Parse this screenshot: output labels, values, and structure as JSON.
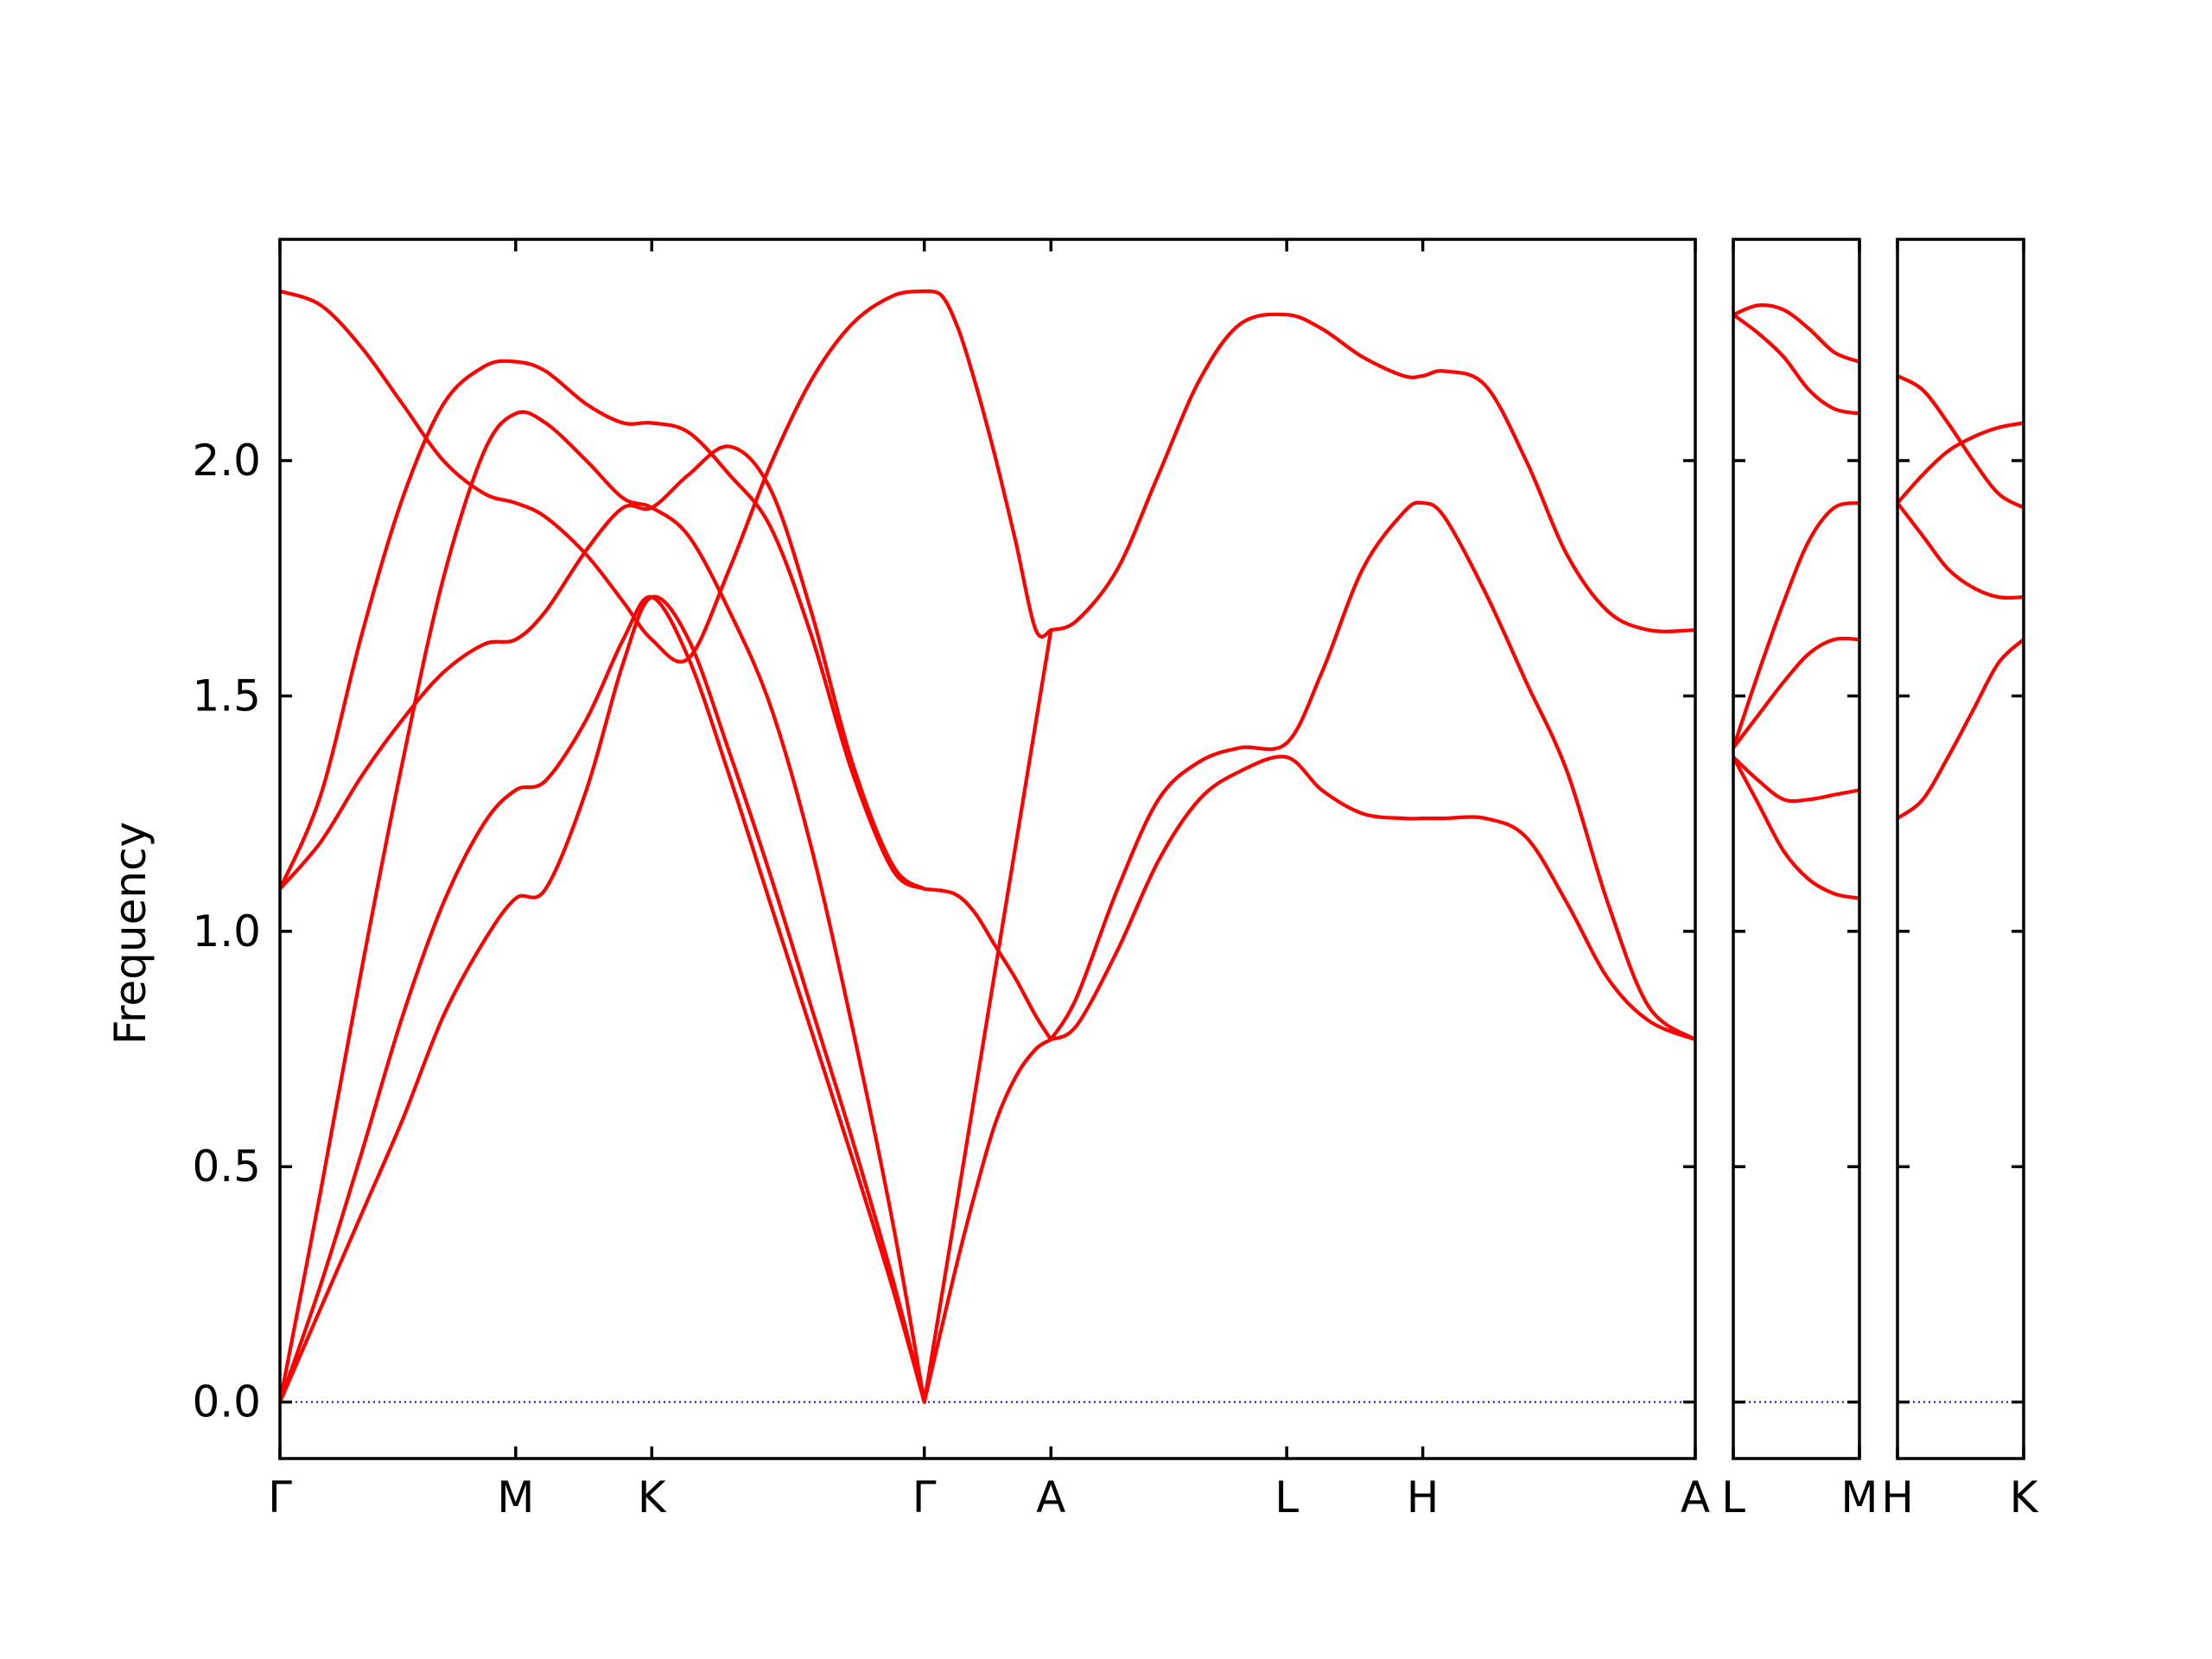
{
  "chart_data": {
    "type": "line",
    "ylabel": "Frequency",
    "ylim": [
      -0.12,
      2.47
    ],
    "yticks": [
      "0.0",
      "0.5",
      "1.0",
      "1.5",
      "2.0"
    ],
    "ytick_values": [
      0.0,
      0.5,
      1.0,
      1.5,
      2.0
    ],
    "colors": {
      "band": "#ff0000",
      "zero_line": "#0000ff"
    },
    "panels": [
      {
        "path": [
          "Γ",
          "M",
          "K",
          "Γ",
          "A",
          "L",
          "H",
          "A"
        ],
        "q_labels": [
          "Γ",
          "M",
          "K",
          "Γ",
          "A",
          "L",
          "H",
          "A"
        ],
        "q_positions": [
          0.0,
          0.577,
          0.91,
          1.577,
          1.887,
          2.464,
          2.797,
          3.464
        ],
        "xlim": [
          0.0,
          3.464
        ],
        "bands": [
          {
            "x": [
              0,
              0.1,
              0.2,
              0.3,
              0.4,
              0.5,
              0.577,
              0.65,
              0.75,
              0.84,
              0.91,
              1.0,
              1.1,
              1.2,
              1.3,
              1.4,
              1.5,
              1.577
            ],
            "y": [
              0.0,
              0.2,
              0.4,
              0.6,
              0.82,
              0.98,
              1.07,
              1.09,
              1.3,
              1.57,
              1.71,
              1.62,
              1.38,
              1.12,
              0.84,
              0.56,
              0.26,
              0.0
            ]
          },
          {
            "x": [
              0,
              0.1,
              0.2,
              0.3,
              0.4,
              0.5,
              0.577,
              0.65,
              0.75,
              0.84,
              0.91,
              1.0,
              1.1,
              1.2,
              1.3,
              1.4,
              1.5,
              1.577
            ],
            "y": [
              0.0,
              0.25,
              0.53,
              0.82,
              1.06,
              1.23,
              1.3,
              1.32,
              1.45,
              1.62,
              1.71,
              1.58,
              1.33,
              1.06,
              0.79,
              0.52,
              0.24,
              0.0
            ]
          },
          {
            "x": [
              0,
              0.1,
              0.2,
              0.3,
              0.4,
              0.5,
              0.577,
              0.65,
              0.75,
              0.84,
              0.91,
              1.0,
              1.1,
              1.2,
              1.3,
              1.4,
              1.5,
              1.577
            ],
            "y": [
              0.0,
              0.45,
              0.92,
              1.36,
              1.75,
              2.02,
              2.1,
              2.08,
              2.0,
              1.92,
              1.9,
              1.84,
              1.68,
              1.48,
              1.18,
              0.8,
              0.38,
              0.0
            ]
          },
          {
            "x": [
              0,
              0.1,
              0.2,
              0.3,
              0.4,
              0.5,
              0.577,
              0.65,
              0.75,
              0.84,
              0.91,
              1.0,
              1.1,
              1.2,
              1.3,
              1.4,
              1.5,
              1.577
            ],
            "y": [
              1.09,
              1.19,
              1.33,
              1.45,
              1.55,
              1.61,
              1.62,
              1.68,
              1.81,
              1.9,
              1.9,
              1.97,
              2.03,
              1.94,
              1.68,
              1.36,
              1.14,
              1.09
            ]
          },
          {
            "x": [
              0,
              0.1,
              0.2,
              0.3,
              0.4,
              0.5,
              0.577,
              0.65,
              0.75,
              0.84,
              0.91,
              1.0,
              1.1,
              1.2,
              1.3,
              1.4,
              1.5,
              1.577
            ],
            "y": [
              1.09,
              1.29,
              1.63,
              1.92,
              2.12,
              2.2,
              2.21,
              2.19,
              2.12,
              2.08,
              2.08,
              2.06,
              1.97,
              1.86,
              1.63,
              1.34,
              1.13,
              1.09
            ]
          },
          {
            "x": [
              0,
              0.1,
              0.2,
              0.3,
              0.4,
              0.5,
              0.577,
              0.65,
              0.75,
              0.84,
              0.91,
              1.0,
              1.1,
              1.2,
              1.3,
              1.4,
              1.5,
              1.577
            ],
            "y": [
              2.36,
              2.33,
              2.24,
              2.12,
              2.0,
              1.93,
              1.91,
              1.88,
              1.8,
              1.7,
              1.62,
              1.58,
              1.77,
              1.99,
              2.17,
              2.29,
              2.35,
              2.36
            ]
          },
          {
            "x": [
              1.577,
              1.65,
              1.7,
              1.75,
              1.8,
              1.85,
              1.887
            ],
            "y": [
              1.09,
              1.08,
              1.04,
              0.97,
              0.9,
              0.82,
              0.77
            ]
          },
          {
            "x": [
              1.577,
              1.65,
              1.7,
              1.75,
              1.8,
              1.85,
              1.887
            ],
            "y": [
              0.0,
              0.27,
              0.44,
              0.59,
              0.69,
              0.75,
              0.77
            ]
          },
          {
            "x": [
              1.577,
              1.887
            ],
            "y": [
              0.0,
              1.64
            ]
          },
          {
            "x": [
              1.577,
              1.62,
              1.66,
              1.7,
              1.75,
              1.8,
              1.85,
              1.887
            ],
            "y": [
              2.36,
              2.35,
              2.28,
              2.17,
              2.01,
              1.83,
              1.64,
              1.64
            ]
          },
          {
            "x": [
              1.887,
              1.95,
              2.05,
              2.15,
              2.25,
              2.35,
              2.464,
              2.55,
              2.65,
              2.75,
              2.797,
              2.85,
              2.95,
              3.05,
              3.15,
              3.25,
              3.35,
              3.464
            ],
            "y": [
              0.77,
              0.8,
              0.96,
              1.15,
              1.28,
              1.34,
              1.37,
              1.3,
              1.25,
              1.24,
              1.24,
              1.24,
              1.24,
              1.2,
              1.06,
              0.9,
              0.81,
              0.77
            ]
          },
          {
            "x": [
              1.887,
              1.95,
              2.05,
              2.15,
              2.25,
              2.35,
              2.464,
              2.55,
              2.65,
              2.75,
              2.797,
              2.85,
              2.95,
              3.05,
              3.15,
              3.25,
              3.35,
              3.464
            ],
            "y": [
              0.77,
              0.86,
              1.09,
              1.28,
              1.36,
              1.39,
              1.4,
              1.55,
              1.77,
              1.89,
              1.91,
              1.88,
              1.72,
              1.53,
              1.34,
              1.06,
              0.84,
              0.77
            ]
          },
          {
            "x": [
              1.887,
              1.95,
              2.05,
              2.15,
              2.25,
              2.35,
              2.464,
              2.55,
              2.65,
              2.75,
              2.797,
              2.85,
              2.95,
              3.05,
              3.15,
              3.25,
              3.35,
              3.464
            ],
            "y": [
              1.64,
              1.66,
              1.77,
              1.97,
              2.17,
              2.29,
              2.31,
              2.28,
              2.22,
              2.18,
              2.18,
              2.19,
              2.16,
              2.0,
              1.8,
              1.68,
              1.64,
              1.64
            ]
          }
        ]
      },
      {
        "path": [
          "L",
          "M"
        ],
        "q_labels": [
          "L",
          "M"
        ],
        "q_positions": [
          0.0,
          0.5
        ],
        "xlim": [
          0.0,
          0.5
        ],
        "bands": [
          {
            "x": [
              0,
              0.1,
              0.2,
              0.3,
              0.4,
              0.5
            ],
            "y": [
              1.37,
              1.27,
              1.17,
              1.11,
              1.08,
              1.07
            ]
          },
          {
            "x": [
              0,
              0.1,
              0.2,
              0.3,
              0.4,
              0.5
            ],
            "y": [
              1.37,
              1.32,
              1.28,
              1.28,
              1.29,
              1.3
            ]
          },
          {
            "x": [
              0,
              0.1,
              0.2,
              0.3,
              0.4,
              0.5
            ],
            "y": [
              1.39,
              1.46,
              1.53,
              1.59,
              1.62,
              1.62
            ]
          },
          {
            "x": [
              0,
              0.1,
              0.2,
              0.3,
              0.4,
              0.5
            ],
            "y": [
              1.39,
              1.55,
              1.7,
              1.83,
              1.9,
              1.91
            ]
          },
          {
            "x": [
              0,
              0.1,
              0.2,
              0.3,
              0.4,
              0.5
            ],
            "y": [
              2.31,
              2.27,
              2.22,
              2.15,
              2.11,
              2.1
            ]
          },
          {
            "x": [
              0,
              0.1,
              0.2,
              0.3,
              0.4,
              0.5
            ],
            "y": [
              2.31,
              2.33,
              2.32,
              2.28,
              2.23,
              2.21
            ]
          }
        ]
      },
      {
        "path": [
          "H",
          "K"
        ],
        "q_labels": [
          "H",
          "K"
        ],
        "q_positions": [
          0.0,
          0.5
        ],
        "xlim": [
          0.0,
          0.5
        ],
        "bands": [
          {
            "x": [
              0,
              0.1,
              0.2,
              0.3,
              0.4,
              0.5
            ],
            "y": [
              1.24,
              1.28,
              1.37,
              1.47,
              1.57,
              1.62
            ]
          },
          {
            "x": [
              0,
              0.1,
              0.2,
              0.3,
              0.4,
              0.5
            ],
            "y": [
              1.91,
              1.84,
              1.77,
              1.73,
              1.71,
              1.71
            ]
          },
          {
            "x": [
              0,
              0.1,
              0.2,
              0.3,
              0.4,
              0.5
            ],
            "y": [
              1.91,
              1.97,
              2.02,
              2.05,
              2.07,
              2.08
            ]
          },
          {
            "x": [
              0,
              0.1,
              0.2,
              0.3,
              0.4,
              0.5
            ],
            "y": [
              2.18,
              2.15,
              2.08,
              2.0,
              1.93,
              1.9
            ]
          }
        ]
      }
    ]
  }
}
